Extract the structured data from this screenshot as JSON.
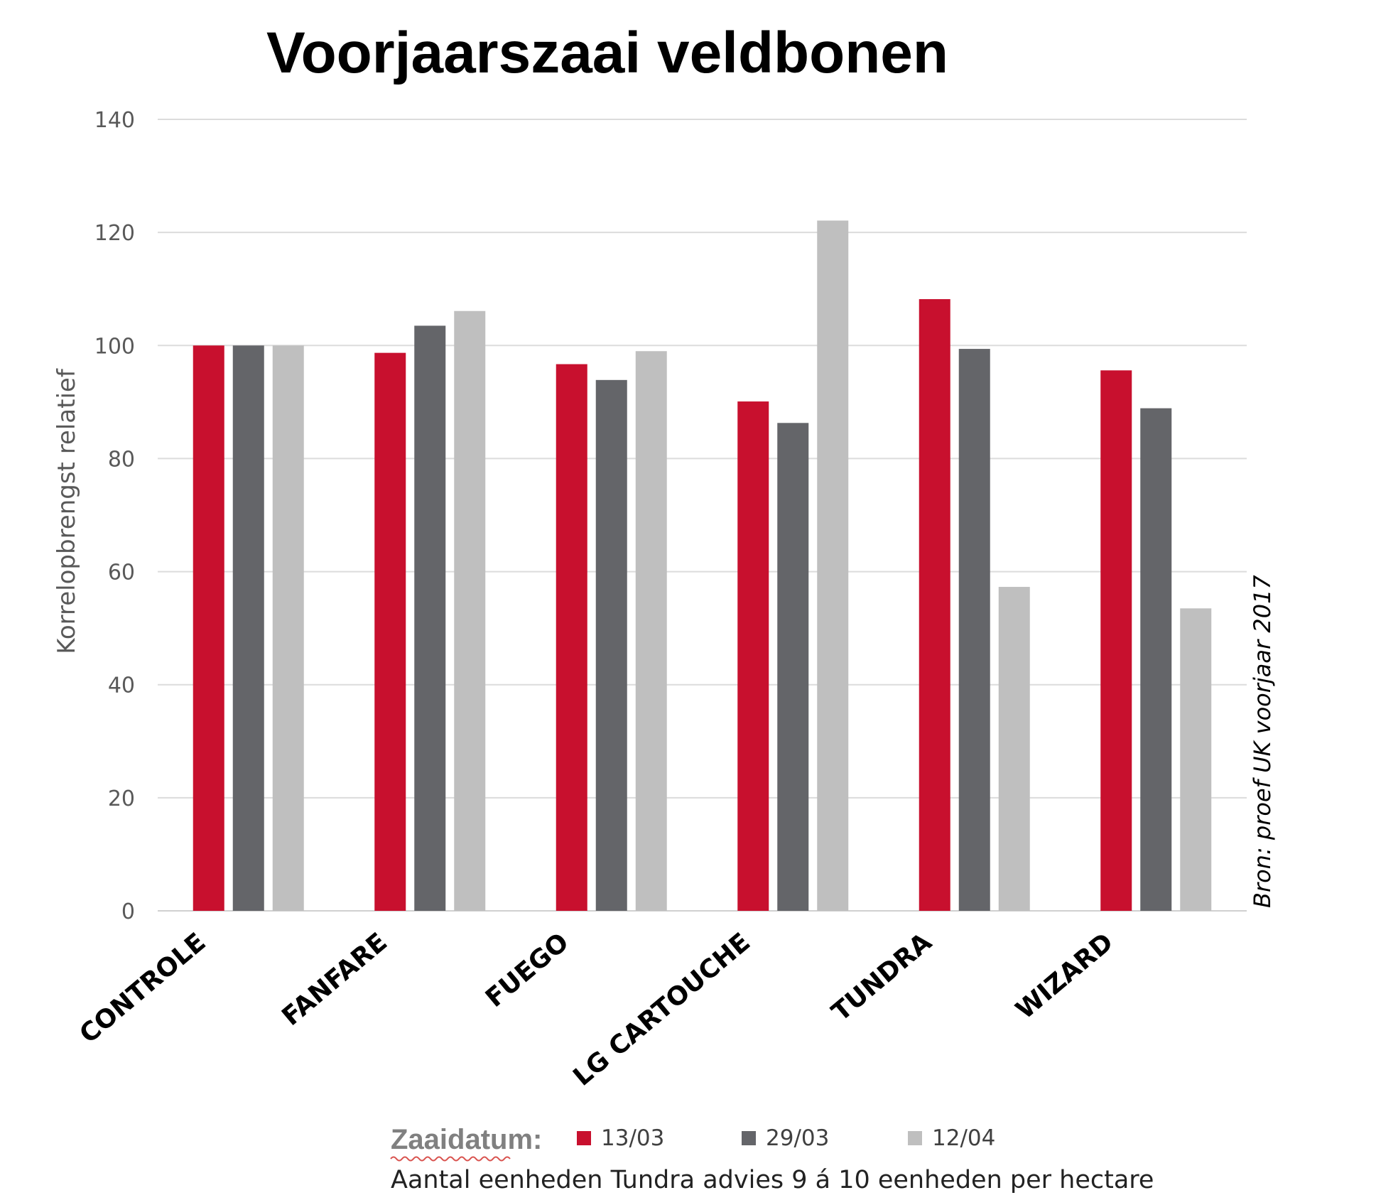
{
  "chart_data": {
    "type": "bar",
    "title": "Voorjaarszaai veldbonen",
    "ylabel": "Korrelopbrengst relatief",
    "xlabel": "",
    "ylim": [
      0,
      140
    ],
    "yticks": [
      "0",
      "20",
      "40",
      "60",
      "80",
      "100",
      "120",
      "140"
    ],
    "grid": true,
    "categories": [
      "CONTROLE",
      "FANFARE",
      "FUEGO",
      "LG CARTOUCHE",
      "TUNDRA",
      "WIZARD"
    ],
    "series": [
      {
        "name": "13/03",
        "color": "#c8102e",
        "values": [
          100,
          98.7,
          96.7,
          90.1,
          108.2,
          95.6
        ]
      },
      {
        "name": "29/03",
        "color": "#646569",
        "values": [
          100,
          103.5,
          93.9,
          86.3,
          99.4,
          88.9
        ]
      },
      {
        "name": "12/04",
        "color": "#bfbfbf",
        "values": [
          100,
          106.1,
          99.0,
          122.1,
          57.3,
          53.5
        ]
      }
    ],
    "legend_title": "Zaaidatum:",
    "legend_position": "bottom",
    "source": "Bron: proef UK voorjaar 2017",
    "note": "Aantal eenheden Tundra advies 9 á 10 eenheden per hectare"
  }
}
